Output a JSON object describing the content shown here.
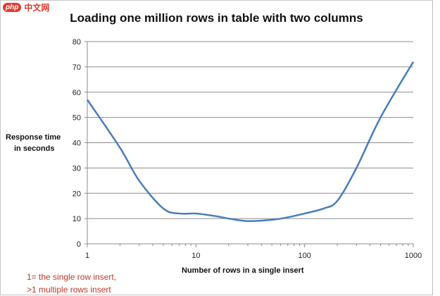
{
  "watermark": {
    "badge": "php",
    "text": "中文网"
  },
  "chart_data": {
    "type": "line",
    "title": "Loading one million rows in table with two columns",
    "xlabel": "Number of rows in a single insert",
    "ylabel_lines": [
      "Response time",
      "in seconds"
    ],
    "x_scale": "log",
    "xlim": [
      1,
      1000
    ],
    "ylim": [
      0,
      80
    ],
    "x_ticks": [
      1,
      10,
      100,
      1000
    ],
    "y_ticks": [
      0,
      10,
      20,
      30,
      40,
      50,
      60,
      70,
      80
    ],
    "grid": "horizontal",
    "legend": "none",
    "line_color": "#4a7ebb",
    "series": [
      {
        "x": [
          1,
          2,
          3,
          5,
          7,
          10,
          15,
          20,
          30,
          50,
          70,
          100,
          150,
          200,
          300,
          500,
          1000
        ],
        "y": [
          57,
          38,
          25,
          14,
          12,
          12,
          11,
          10,
          9,
          9.5,
          10.5,
          12,
          14,
          17,
          30,
          50,
          72
        ]
      }
    ],
    "annotation_lines": [
      "1= the single row  insert,",
      ">1 multiple rows insert"
    ]
  }
}
